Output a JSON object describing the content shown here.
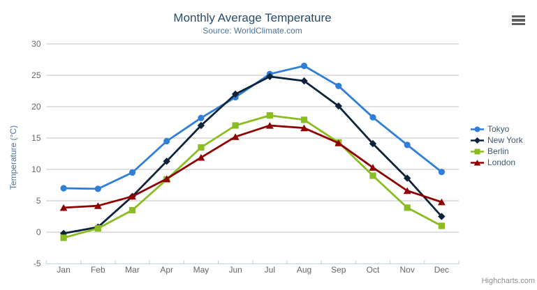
{
  "chart_data": {
    "type": "line",
    "title": "Monthly Average Temperature",
    "subtitle": "Source: WorldClimate.com",
    "categories": [
      "Jan",
      "Feb",
      "Mar",
      "Apr",
      "May",
      "Jun",
      "Jul",
      "Aug",
      "Sep",
      "Oct",
      "Nov",
      "Dec"
    ],
    "xlabel": "",
    "ylabel": "Temperature (°C)",
    "ylim": [
      -5,
      30
    ],
    "yticks": [
      -5,
      0,
      5,
      10,
      15,
      20,
      25,
      30
    ],
    "grid": true,
    "legend_position": "right",
    "series": [
      {
        "name": "Tokyo",
        "color": "#2f7ed8",
        "marker": "circle",
        "values": [
          7.0,
          6.9,
          9.5,
          14.5,
          18.2,
          21.5,
          25.2,
          26.5,
          23.3,
          18.3,
          13.9,
          9.6
        ]
      },
      {
        "name": "New York",
        "color": "#0d233a",
        "marker": "diamond",
        "values": [
          -0.2,
          0.8,
          5.7,
          11.3,
          17.0,
          22.0,
          24.8,
          24.1,
          20.1,
          14.1,
          8.6,
          2.5
        ]
      },
      {
        "name": "Berlin",
        "color": "#8bbc21",
        "marker": "square",
        "values": [
          -0.9,
          0.6,
          3.5,
          8.4,
          13.5,
          17.0,
          18.6,
          17.9,
          14.3,
          9.0,
          3.9,
          1.0
        ]
      },
      {
        "name": "London",
        "color": "#910000",
        "marker": "triangle",
        "values": [
          3.9,
          4.2,
          5.7,
          8.5,
          11.9,
          15.2,
          17.0,
          16.6,
          14.2,
          10.3,
          6.6,
          4.8
        ]
      }
    ]
  },
  "credits": {
    "label": "Highcharts.com"
  },
  "colors": {
    "background": "#ffffff",
    "title": "#274b6d",
    "subtitle": "#4d759e",
    "axis_title": "#4d759e",
    "tick_label": "#666666",
    "grid_line": "#c0c0c0",
    "axis_line": "#c0d0e0",
    "legend_text": "#3e576f",
    "credits": "#8f8f8f",
    "menu_icon": "#606060"
  }
}
